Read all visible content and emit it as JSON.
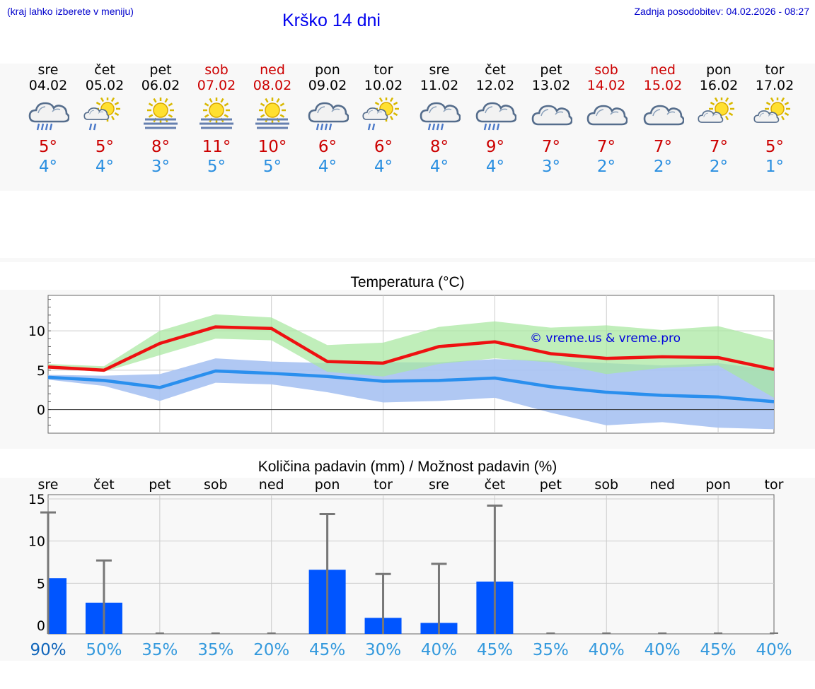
{
  "header": {
    "hint": "(kraj lahko izberete v meniju)",
    "title": "Krško 14 dni",
    "updated": "Zadnja posodobitev: 04.02.2026 - 08:27"
  },
  "days": [
    {
      "name": "sre",
      "date": "04.02",
      "icon": "cloud-rain-icon",
      "tmax": "5°",
      "tmin": "4°",
      "weekend": false
    },
    {
      "name": "čet",
      "date": "05.02",
      "icon": "sun-cloud-rain-icon",
      "tmax": "5°",
      "tmin": "4°",
      "weekend": false
    },
    {
      "name": "pet",
      "date": "06.02",
      "icon": "sun-fog-icon",
      "tmax": "8°",
      "tmin": "3°",
      "weekend": false
    },
    {
      "name": "sob",
      "date": "07.02",
      "icon": "sun-fog-icon",
      "tmax": "11°",
      "tmin": "5°",
      "weekend": true
    },
    {
      "name": "ned",
      "date": "08.02",
      "icon": "sun-fog-icon",
      "tmax": "10°",
      "tmin": "5°",
      "weekend": true
    },
    {
      "name": "pon",
      "date": "09.02",
      "icon": "cloud-rain-icon",
      "tmax": "6°",
      "tmin": "4°",
      "weekend": false
    },
    {
      "name": "tor",
      "date": "10.02",
      "icon": "sun-cloud-rain-icon",
      "tmax": "6°",
      "tmin": "4°",
      "weekend": false
    },
    {
      "name": "sre",
      "date": "11.02",
      "icon": "cloud-rain-icon",
      "tmax": "8°",
      "tmin": "4°",
      "weekend": false
    },
    {
      "name": "čet",
      "date": "12.02",
      "icon": "cloud-rain-icon",
      "tmax": "9°",
      "tmin": "4°",
      "weekend": false
    },
    {
      "name": "pet",
      "date": "13.02",
      "icon": "cloud-icon",
      "tmax": "7°",
      "tmin": "3°",
      "weekend": false
    },
    {
      "name": "sob",
      "date": "14.02",
      "icon": "cloud-icon",
      "tmax": "7°",
      "tmin": "2°",
      "weekend": true
    },
    {
      "name": "ned",
      "date": "15.02",
      "icon": "cloud-icon",
      "tmax": "7°",
      "tmin": "2°",
      "weekend": true
    },
    {
      "name": "pon",
      "date": "16.02",
      "icon": "sun-cloud-icon",
      "tmax": "7°",
      "tmin": "2°",
      "weekend": false
    },
    {
      "name": "tor",
      "date": "17.02",
      "icon": "sun-cloud-icon",
      "tmax": "5°",
      "tmin": "1°",
      "weekend": false
    }
  ],
  "colors": {
    "max_line": "#ee1111",
    "min_line": "#2a8fee",
    "max_band": "#a8e8a0",
    "min_band": "#a9c3f2",
    "overlap_band": "#7fc6a8",
    "bar": "#0055ff",
    "err": "#777777",
    "pct": "#3399dd",
    "pct_first": "#1166bb"
  },
  "chart_data": [
    {
      "type": "line",
      "title": "Temperatura (°C)",
      "watermark": "© vreme.us & vreme.pro",
      "ylim": [
        -3,
        14.5
      ],
      "yticks": [
        0,
        5,
        10
      ],
      "x": [
        0,
        1,
        2,
        3,
        4,
        5,
        6,
        7,
        8,
        9,
        10,
        11,
        12,
        13
      ],
      "series": [
        {
          "name": "max",
          "values": [
            5.4,
            5.0,
            8.4,
            10.5,
            10.3,
            6.1,
            5.9,
            8.0,
            8.6,
            7.1,
            6.5,
            6.7,
            6.6,
            5.1
          ],
          "band_low": [
            5.2,
            4.8,
            6.9,
            9.0,
            8.8,
            4.8,
            4.2,
            5.8,
            6.5,
            6.0,
            4.5,
            5.3,
            5.6,
            1.5
          ],
          "band_high": [
            5.8,
            5.5,
            10.0,
            12.1,
            11.7,
            8.2,
            8.5,
            10.5,
            11.2,
            10.4,
            10.7,
            10.1,
            10.6,
            8.8
          ]
        },
        {
          "name": "min",
          "values": [
            4.1,
            3.7,
            2.8,
            4.9,
            4.6,
            4.2,
            3.6,
            3.7,
            4.0,
            2.9,
            2.2,
            1.8,
            1.6,
            1.0
          ],
          "band_low": [
            3.8,
            3.0,
            1.1,
            3.4,
            3.2,
            2.2,
            0.9,
            1.1,
            1.5,
            -0.4,
            -2.0,
            -1.6,
            -2.3,
            -2.5
          ],
          "band_high": [
            4.4,
            4.3,
            4.5,
            6.5,
            6.1,
            5.9,
            6.0,
            6.0,
            6.4,
            6.2,
            5.9,
            5.6,
            5.9,
            5.0
          ]
        }
      ]
    },
    {
      "type": "bar",
      "title": "Količina padavin (mm) / Možnost padavin (%)",
      "ylim": [
        -1,
        15.5
      ],
      "yticks": [
        0,
        5,
        10,
        15
      ],
      "categories": [
        "sre",
        "čet",
        "pet",
        "sob",
        "ned",
        "pon",
        "tor",
        "sre",
        "čet",
        "pet",
        "sob",
        "ned",
        "pon",
        "tor"
      ],
      "values": [
        5.6,
        2.7,
        0,
        0,
        0,
        6.6,
        0.9,
        0.3,
        5.2,
        0,
        0,
        0,
        0,
        0
      ],
      "err_high": [
        13.4,
        7.7,
        0,
        0,
        0,
        13.2,
        6.1,
        7.3,
        14.2,
        0,
        0,
        0,
        0,
        0
      ],
      "probability": [
        "90%",
        "50%",
        "35%",
        "35%",
        "20%",
        "45%",
        "30%",
        "40%",
        "45%",
        "35%",
        "40%",
        "40%",
        "45%",
        "40%"
      ]
    }
  ]
}
